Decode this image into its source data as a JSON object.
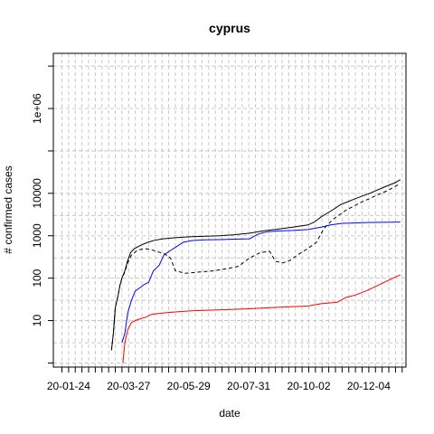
{
  "chart_data": {
    "type": "line",
    "title": "cyprus",
    "xlabel": "date",
    "ylabel": "# confirmed cases",
    "y_scale": "log",
    "grid": true,
    "x_ticks": [
      "20-01-24",
      "20-03-27",
      "20-05-29",
      "20-07-31",
      "20-10-02",
      "20-12-04"
    ],
    "y_ticks": [
      {
        "value": 10,
        "label": "10"
      },
      {
        "value": 100,
        "label": "100"
      },
      {
        "value": 1000,
        "label": "1000"
      },
      {
        "value": 10000,
        "label": "10000"
      },
      {
        "value": 1000000,
        "label": "1e+06"
      }
    ],
    "ylim": [
      0.8,
      20000000
    ],
    "xlim": [
      "2020-01-08",
      "2021-01-12"
    ],
    "series": [
      {
        "color": "#000000",
        "dash": "solid",
        "points": [
          [
            "2020-03-09",
            2
          ],
          [
            "2020-03-11",
            5
          ],
          [
            "2020-03-13",
            20
          ],
          [
            "2020-03-16",
            40
          ],
          [
            "2020-03-18",
            70
          ],
          [
            "2020-03-20",
            100
          ],
          [
            "2020-03-23",
            150
          ],
          [
            "2020-03-26",
            260
          ],
          [
            "2020-03-29",
            400
          ],
          [
            "2020-04-02",
            500
          ],
          [
            "2020-04-09",
            600
          ],
          [
            "2020-04-16",
            700
          ],
          [
            "2020-04-23",
            780
          ],
          [
            "2020-05-01",
            840
          ],
          [
            "2020-05-15",
            900
          ],
          [
            "2020-06-01",
            950
          ],
          [
            "2020-07-01",
            1000
          ],
          [
            "2020-07-15",
            1050
          ],
          [
            "2020-08-01",
            1150
          ],
          [
            "2020-08-15",
            1300
          ],
          [
            "2020-09-01",
            1450
          ],
          [
            "2020-09-15",
            1600
          ],
          [
            "2020-10-01",
            1800
          ],
          [
            "2020-10-08",
            2100
          ],
          [
            "2020-10-15",
            2800
          ],
          [
            "2020-10-25",
            3800
          ],
          [
            "2020-11-05",
            5500
          ],
          [
            "2020-11-20",
            7500
          ],
          [
            "2020-12-05",
            10000
          ],
          [
            "2020-12-20",
            14000
          ],
          [
            "2021-01-01",
            18000
          ],
          [
            "2021-01-06",
            21000
          ]
        ]
      },
      {
        "color": "#0000ff",
        "dash": "solid",
        "points": [
          [
            "2020-03-20",
            3
          ],
          [
            "2020-03-23",
            5
          ],
          [
            "2020-03-26",
            15
          ],
          [
            "2020-03-30",
            30
          ],
          [
            "2020-04-03",
            50
          ],
          [
            "2020-04-08",
            60
          ],
          [
            "2020-04-12",
            70
          ],
          [
            "2020-04-17",
            80
          ],
          [
            "2020-04-22",
            150
          ],
          [
            "2020-04-28",
            200
          ],
          [
            "2020-05-03",
            350
          ],
          [
            "2020-05-10",
            450
          ],
          [
            "2020-05-16",
            550
          ],
          [
            "2020-05-23",
            700
          ],
          [
            "2020-06-01",
            770
          ],
          [
            "2020-06-15",
            800
          ],
          [
            "2020-07-01",
            810
          ],
          [
            "2020-07-15",
            830
          ],
          [
            "2020-08-01",
            850
          ],
          [
            "2020-08-10",
            1100
          ],
          [
            "2020-08-20",
            1250
          ],
          [
            "2020-09-01",
            1300
          ],
          [
            "2020-09-15",
            1330
          ],
          [
            "2020-10-01",
            1400
          ],
          [
            "2020-10-15",
            1600
          ],
          [
            "2020-10-25",
            1800
          ],
          [
            "2020-11-05",
            1950
          ],
          [
            "2020-12-01",
            2050
          ],
          [
            "2021-01-06",
            2100
          ]
        ]
      },
      {
        "color": "#ff0000",
        "dash": "solid",
        "points": [
          [
            "2020-03-21",
            1
          ],
          [
            "2020-03-23",
            3
          ],
          [
            "2020-03-26",
            6
          ],
          [
            "2020-03-30",
            9
          ],
          [
            "2020-04-03",
            10
          ],
          [
            "2020-04-08",
            11
          ],
          [
            "2020-04-14",
            12
          ],
          [
            "2020-04-20",
            14
          ],
          [
            "2020-05-01",
            15
          ],
          [
            "2020-05-15",
            16
          ],
          [
            "2020-06-01",
            17
          ],
          [
            "2020-07-01",
            18
          ],
          [
            "2020-08-01",
            19
          ],
          [
            "2020-08-20",
            20
          ],
          [
            "2020-09-10",
            21
          ],
          [
            "2020-10-01",
            22
          ],
          [
            "2020-10-15",
            25
          ],
          [
            "2020-11-01",
            27
          ],
          [
            "2020-11-10",
            35
          ],
          [
            "2020-11-20",
            40
          ],
          [
            "2020-12-01",
            50
          ],
          [
            "2020-12-15",
            70
          ],
          [
            "2020-12-25",
            90
          ],
          [
            "2021-01-06",
            120
          ]
        ]
      },
      {
        "color": "#000000",
        "dash": "dashed",
        "points": [
          [
            "2020-03-09",
            2
          ],
          [
            "2020-03-11",
            5
          ],
          [
            "2020-03-13",
            20
          ],
          [
            "2020-03-16",
            40
          ],
          [
            "2020-03-18",
            70
          ],
          [
            "2020-03-20",
            100
          ],
          [
            "2020-03-23",
            140
          ],
          [
            "2020-03-26",
            230
          ],
          [
            "2020-03-30",
            350
          ],
          [
            "2020-04-05",
            450
          ],
          [
            "2020-04-12",
            500
          ],
          [
            "2020-04-19",
            480
          ],
          [
            "2020-04-26",
            420
          ],
          [
            "2020-05-03",
            380
          ],
          [
            "2020-05-10",
            300
          ],
          [
            "2020-05-15",
            150
          ],
          [
            "2020-05-25",
            130
          ],
          [
            "2020-06-10",
            140
          ],
          [
            "2020-06-25",
            150
          ],
          [
            "2020-07-10",
            170
          ],
          [
            "2020-07-20",
            190
          ],
          [
            "2020-08-01",
            300
          ],
          [
            "2020-08-12",
            400
          ],
          [
            "2020-08-22",
            430
          ],
          [
            "2020-08-28",
            250
          ],
          [
            "2020-09-05",
            230
          ],
          [
            "2020-09-12",
            260
          ],
          [
            "2020-09-20",
            350
          ],
          [
            "2020-10-01",
            500
          ],
          [
            "2020-10-10",
            700
          ],
          [
            "2020-10-18",
            1500
          ],
          [
            "2020-10-28",
            2500
          ],
          [
            "2020-11-10",
            4000
          ],
          [
            "2020-11-25",
            6000
          ],
          [
            "2020-12-10",
            8500
          ],
          [
            "2020-12-25",
            12000
          ],
          [
            "2021-01-06",
            17000
          ]
        ]
      }
    ]
  }
}
